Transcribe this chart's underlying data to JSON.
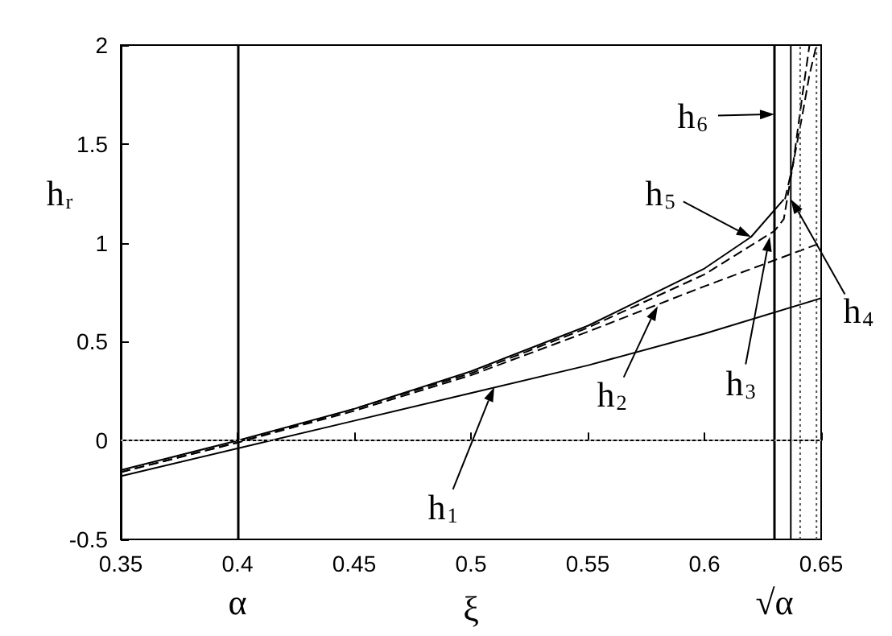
{
  "chart_data": {
    "type": "line",
    "xlabel": "ξ",
    "ylabel": "h$_{r}$",
    "xlim": [
      0.35,
      0.65
    ],
    "ylim": [
      -0.5,
      2
    ],
    "xticks": [
      0.35,
      0.4,
      0.45,
      0.5,
      0.55,
      0.6,
      0.65
    ],
    "yticks": [
      -0.5,
      0,
      0.5,
      1,
      1.5,
      2
    ],
    "grid": false,
    "marker": "none",
    "series": [
      {
        "color": "#000000",
        "line_style": "solid",
        "x": [
          0.35,
          0.4,
          0.45,
          0.5,
          0.55,
          0.6,
          0.65
        ],
        "values": [
          -0.18,
          -0.04,
          0.1,
          0.24,
          0.38,
          0.54,
          0.72
        ]
      },
      {
        "color": "#000000",
        "line_style": "dashed",
        "x": [
          0.35,
          0.4,
          0.45,
          0.5,
          0.55,
          0.6,
          0.65
        ],
        "values": [
          -0.16,
          -0.01,
          0.15,
          0.33,
          0.55,
          0.78,
          1.0
        ]
      },
      {
        "color": "#000000",
        "line_style": "dashed",
        "x": [
          0.35,
          0.4,
          0.45,
          0.5,
          0.55,
          0.6,
          0.63,
          0.634,
          0.638,
          0.642,
          0.645
        ],
        "values": [
          -0.16,
          -0.01,
          0.16,
          0.34,
          0.57,
          0.84,
          1.06,
          1.12,
          1.4,
          1.75,
          2
        ]
      },
      {
        "color": "#000000",
        "line_style": "dashed",
        "x": [
          0.6345,
          0.638,
          0.642,
          0.645,
          0.648
        ],
        "values": [
          1.22,
          1.4,
          1.65,
          1.85,
          2
        ]
      },
      {
        "color": "#000000",
        "line_style": "solid",
        "x": [
          0.35,
          0.4,
          0.45,
          0.5,
          0.55,
          0.6,
          0.62,
          0.634
        ],
        "values": [
          -0.15,
          0,
          0.16,
          0.35,
          0.58,
          0.87,
          1.03,
          1.22
        ]
      },
      {
        "color": "#000000",
        "line_style": "solid",
        "x": [
          0.637,
          0.637
        ],
        "values": [
          -0.5,
          2
        ]
      },
      {
        "color": "#555555",
        "line_style": "dotted",
        "x": [
          0.641,
          0.641
        ],
        "values": [
          -0.5,
          2
        ]
      },
      {
        "color": "#555555",
        "line_style": "dotted",
        "x": [
          0.648,
          0.648
        ],
        "values": [
          -0.5,
          2
        ]
      }
    ],
    "ref_lines": [
      {
        "axis": "x",
        "value": 0.4,
        "label": "α",
        "color": "#000000",
        "line_style": "solid"
      },
      {
        "axis": "x",
        "value": 0.63,
        "label": "√α",
        "color": "#000000",
        "line_style": "solid"
      },
      {
        "axis": "y",
        "value": 0,
        "color": "#aaaaaa",
        "line_style": "dotted"
      }
    ],
    "annotations": [
      {
        "text": "h$_{1}$",
        "x": 0.51,
        "y": 0.27
      },
      {
        "text": "h$_{2}$",
        "x": 0.58,
        "y": 0.68
      },
      {
        "text": "h$_{3}$",
        "x": 0.628,
        "y": 1.03
      },
      {
        "text": "h$_{4}$",
        "x": 0.637,
        "y": 1.22
      },
      {
        "text": "h$_{5}$",
        "x": 0.62,
        "y": 1.03
      },
      {
        "text": "h$_{6}$",
        "x": 0.63,
        "y": 1.65
      }
    ]
  }
}
